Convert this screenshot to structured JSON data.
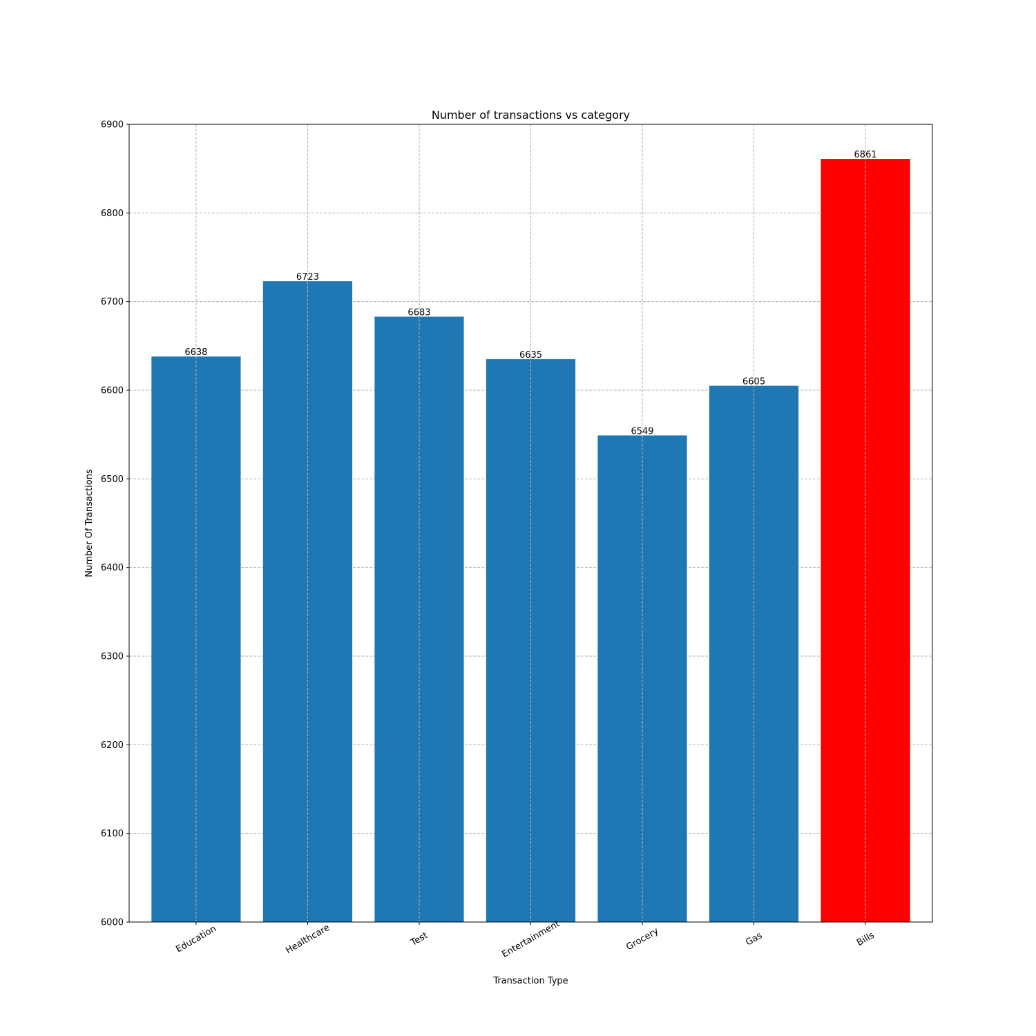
{
  "chart_data": {
    "type": "bar",
    "title": "Number of transactions vs category",
    "xlabel": "Transaction Type",
    "ylabel": "Number Of Transactions",
    "categories": [
      "Education",
      "Healthcare",
      "Test",
      "Entertainment",
      "Grocery",
      "Gas",
      "Bills"
    ],
    "values": [
      6638,
      6723,
      6683,
      6635,
      6549,
      6605,
      6861
    ],
    "data_labels": [
      "6638",
      "6723",
      "6683",
      "6635",
      "6549",
      "6605",
      "6861"
    ],
    "bar_colors": [
      "#1f77b4",
      "#1f77b4",
      "#1f77b4",
      "#1f77b4",
      "#1f77b4",
      "#1f77b4",
      "#ff0000"
    ],
    "ylim": [
      6000,
      6900
    ],
    "yticks": [
      6000,
      6100,
      6200,
      6300,
      6400,
      6500,
      6600,
      6700,
      6800,
      6900
    ],
    "ytick_labels": [
      "6000",
      "6100",
      "6200",
      "6300",
      "6400",
      "6500",
      "6600",
      "6700",
      "6800",
      "6900"
    ],
    "grid": true,
    "grid_color": "#b0b0b0",
    "xtick_rotation": 30
  }
}
